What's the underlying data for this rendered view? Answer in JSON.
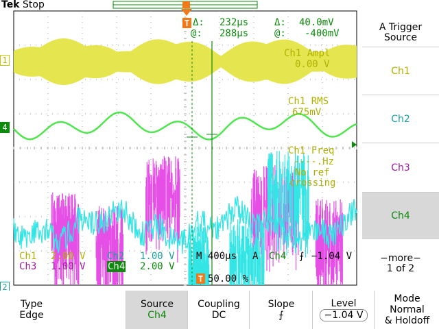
{
  "header": {
    "brand": "Tek",
    "run_state": "Stop"
  },
  "colors": {
    "ch1": "#e5e54f",
    "ch2": "#33e5e5",
    "ch3": "#e54fe5",
    "ch4": "#4fe54f",
    "meas": "#b0b000",
    "cursor": "#0c8a0c",
    "trigger": "#f07a1a",
    "screen": "#ffffff",
    "grid": "#a0a0a0"
  },
  "cursor_readout": {
    "t_marker": "T",
    "delta_time_label": "Δ:",
    "delta_time": "232µs",
    "at_time_label": "@:",
    "at_time": "288µs",
    "delta_volt_label": "Δ:",
    "delta_volt": "40.0mV",
    "at_volt_label": "@:",
    "at_volt": "-400mV"
  },
  "measurements": [
    {
      "name": "Ch1 Ampl",
      "value": "0.00 V"
    },
    {
      "name": "Ch1 RMS",
      "value": "675mV"
    },
    {
      "name": "Ch1 Freq",
      "value": "----.Hz",
      "note_1": "No ref",
      "note_2": "crossing"
    }
  ],
  "channel_markers": {
    "ch1": "1",
    "ch4": "4",
    "ch2": "2"
  },
  "status": {
    "ch1_label": "Ch1",
    "ch1_scale": "2.00 V",
    "ch2_label": "Ch2",
    "ch2_scale": "1.00 V",
    "ch3_label": "Ch3",
    "ch3_scale": "1.00 V",
    "ch4_label": "Ch4",
    "ch4_scale": "2.00 V",
    "timebase": "M 400µs",
    "trigger_mode": "A",
    "trigger_source": "Ch4",
    "trigger_level": "−1.04 V",
    "trigger_pos_marker": "T",
    "trigger_pos": "50.00 %"
  },
  "side_menu": {
    "title_1": "A Trigger",
    "title_2": "Source",
    "items": [
      "Ch1",
      "Ch2",
      "Ch3",
      "Ch4"
    ],
    "item_colors": [
      "#b0b000",
      "#1aa0a0",
      "#a01aa0",
      "#0c8a0c"
    ],
    "selected": "Ch4",
    "more_1": "−more−",
    "more_2": "1 of 2"
  },
  "bottom_menu": {
    "type_label": "Type",
    "type_value": "Edge",
    "source_label": "Source",
    "source_value": "Ch4",
    "coupling_label": "Coupling",
    "coupling_value": "DC",
    "slope_label": "Slope",
    "slope_value": "⨍",
    "level_label": "Level",
    "level_value": "−1.04 V",
    "mode_label_1": "Mode",
    "mode_label_2": "Normal",
    "mode_label_3": "& Holdoff"
  }
}
